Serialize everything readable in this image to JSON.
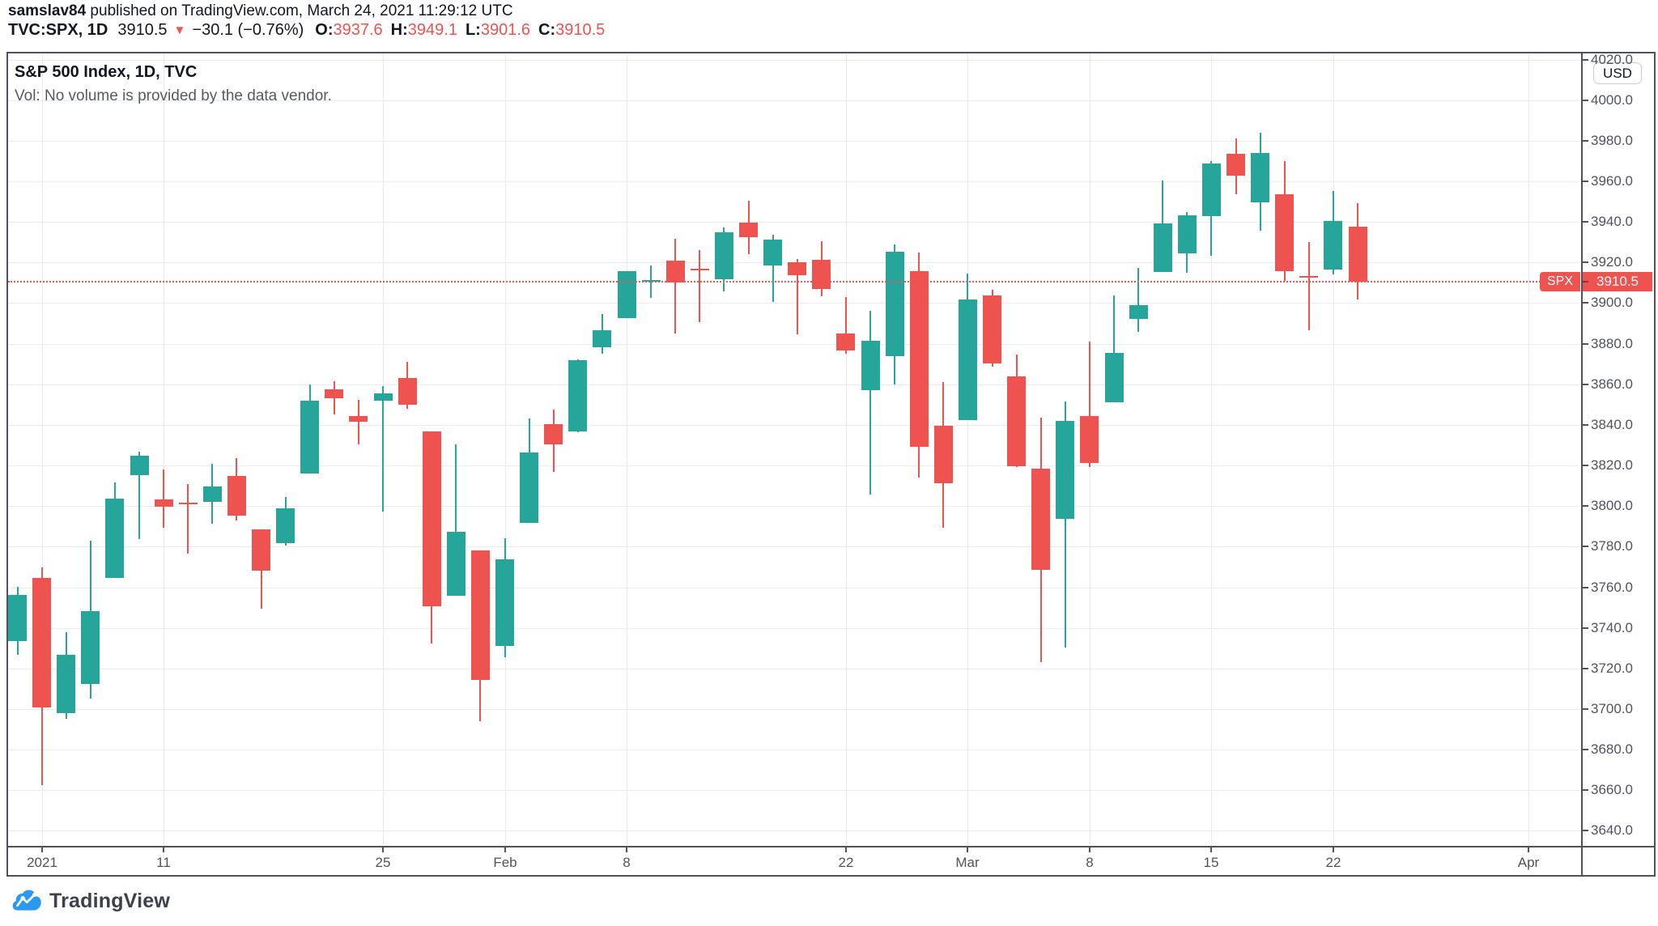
{
  "header": {
    "username": "samslav84",
    "published": " published on TradingView.com, March 24, 2021 11:29:12 UTC",
    "symbol": "TVC:SPX, 1D",
    "last_price": "3910.5",
    "direction_icon": "▼",
    "change": "−30.1 (−0.76%)",
    "ohlc": [
      {
        "k": "O:",
        "v": "3937.6"
      },
      {
        "k": "H:",
        "v": "3949.1"
      },
      {
        "k": "L:",
        "v": "3901.6"
      },
      {
        "k": "C:",
        "v": "3910.5"
      }
    ]
  },
  "legend": {
    "title": "S&P 500 Index, 1D, TVC",
    "volume_note": "Vol: No volume is provided by the data vendor."
  },
  "price_axis": {
    "currency": "USD",
    "label_badge": {
      "symbol": "SPX",
      "value": "3910.5"
    }
  },
  "watermark": "TradingView",
  "colors": {
    "up": "#26a69a",
    "down": "#ef5350",
    "accent_red": "#ef5350",
    "axis_text": "#50535e",
    "grid_h": "#e8edf3",
    "grid_v": "#e4ebf3",
    "frame": "#4f525c",
    "header_text": "#131722",
    "logo_blue": "#2b99f0"
  },
  "chart_data": {
    "type": "candlestick",
    "title": "S&P 500 Index, 1D, TVC",
    "symbol": "TVC:SPX",
    "timeframe": "1D",
    "currency": "USD",
    "price_line": 3910.5,
    "ylim": [
      3633,
      4023
    ],
    "y_ticks": [
      3640,
      3660,
      3680,
      3700,
      3720,
      3740,
      3760,
      3780,
      3800,
      3820,
      3840,
      3860,
      3880,
      3900,
      3920,
      3940,
      3960,
      3980,
      4000,
      4020
    ],
    "x_ticks": [
      {
        "label": "2021",
        "bar": 1
      },
      {
        "label": "11",
        "bar": 6
      },
      {
        "label": "25",
        "bar": 15
      },
      {
        "label": "Feb",
        "bar": 20
      },
      {
        "label": "8",
        "bar": 25
      },
      {
        "label": "22",
        "bar": 34
      },
      {
        "label": "Mar",
        "bar": 39
      },
      {
        "label": "8",
        "bar": 44
      },
      {
        "label": "15",
        "bar": 49
      },
      {
        "label": "22",
        "bar": 54
      },
      {
        "label": "Apr",
        "bar": 62
      }
    ],
    "bars": [
      {
        "date": "2020-12-31",
        "o": 3733.3,
        "h": 3760.2,
        "l": 3726.9,
        "c": 3756.1
      },
      {
        "date": "2021-01-04",
        "o": 3764.6,
        "h": 3769.9,
        "l": 3662.7,
        "c": 3700.6
      },
      {
        "date": "2021-01-05",
        "o": 3698.0,
        "h": 3737.8,
        "l": 3695.1,
        "c": 3726.9
      },
      {
        "date": "2021-01-06",
        "o": 3712.2,
        "h": 3783.0,
        "l": 3705.3,
        "c": 3748.1
      },
      {
        "date": "2021-01-07",
        "o": 3764.7,
        "h": 3811.6,
        "l": 3764.7,
        "c": 3803.8
      },
      {
        "date": "2021-01-08",
        "o": 3815.1,
        "h": 3826.7,
        "l": 3783.6,
        "c": 3824.7
      },
      {
        "date": "2021-01-11",
        "o": 3803.1,
        "h": 3817.9,
        "l": 3789.0,
        "c": 3799.6
      },
      {
        "date": "2021-01-12",
        "o": 3801.6,
        "h": 3810.8,
        "l": 3776.5,
        "c": 3801.2
      },
      {
        "date": "2021-01-13",
        "o": 3802.2,
        "h": 3820.9,
        "l": 3791.5,
        "c": 3809.8
      },
      {
        "date": "2021-01-14",
        "o": 3814.9,
        "h": 3823.6,
        "l": 3792.9,
        "c": 3795.5
      },
      {
        "date": "2021-01-15",
        "o": 3788.7,
        "h": 3788.7,
        "l": 3749.6,
        "c": 3768.3
      },
      {
        "date": "2021-01-19",
        "o": 3781.9,
        "h": 3804.5,
        "l": 3780.4,
        "c": 3798.9
      },
      {
        "date": "2021-01-20",
        "o": 3816.2,
        "h": 3859.8,
        "l": 3816.2,
        "c": 3851.9
      },
      {
        "date": "2021-01-21",
        "o": 3857.5,
        "h": 3861.5,
        "l": 3845.1,
        "c": 3853.1
      },
      {
        "date": "2021-01-22",
        "o": 3844.2,
        "h": 3852.3,
        "l": 3830.4,
        "c": 3841.5
      },
      {
        "date": "2021-01-25",
        "o": 3851.7,
        "h": 3859.2,
        "l": 3797.2,
        "c": 3855.4
      },
      {
        "date": "2021-01-26",
        "o": 3862.9,
        "h": 3870.9,
        "l": 3847.8,
        "c": 3849.6
      },
      {
        "date": "2021-01-27",
        "o": 3836.8,
        "h": 3836.8,
        "l": 3732.5,
        "c": 3750.8
      },
      {
        "date": "2021-01-28",
        "o": 3755.8,
        "h": 3830.5,
        "l": 3755.8,
        "c": 3787.4
      },
      {
        "date": "2021-01-29",
        "o": 3778.1,
        "h": 3778.1,
        "l": 3694.1,
        "c": 3714.2
      },
      {
        "date": "2021-02-01",
        "o": 3731.2,
        "h": 3784.3,
        "l": 3725.6,
        "c": 3773.9
      },
      {
        "date": "2021-02-02",
        "o": 3791.8,
        "h": 3843.2,
        "l": 3791.8,
        "c": 3826.3
      },
      {
        "date": "2021-02-03",
        "o": 3840.3,
        "h": 3847.5,
        "l": 3816.7,
        "c": 3830.2
      },
      {
        "date": "2021-02-04",
        "o": 3836.7,
        "h": 3872.4,
        "l": 3836.7,
        "c": 3871.7
      },
      {
        "date": "2021-02-05",
        "o": 3878.3,
        "h": 3894.6,
        "l": 3874.9,
        "c": 3886.8
      },
      {
        "date": "2021-02-08",
        "o": 3892.6,
        "h": 3915.8,
        "l": 3892.6,
        "c": 3915.6
      },
      {
        "date": "2021-02-09",
        "o": 3910.5,
        "h": 3918.4,
        "l": 3902.6,
        "c": 3911.2
      },
      {
        "date": "2021-02-10",
        "o": 3920.8,
        "h": 3931.5,
        "l": 3884.9,
        "c": 3909.9
      },
      {
        "date": "2021-02-11",
        "o": 3916.8,
        "h": 3926.0,
        "l": 3890.4,
        "c": 3916.4
      },
      {
        "date": "2021-02-12",
        "o": 3911.7,
        "h": 3937.2,
        "l": 3905.8,
        "c": 3934.8
      },
      {
        "date": "2021-02-16",
        "o": 3939.6,
        "h": 3950.4,
        "l": 3923.9,
        "c": 3932.6
      },
      {
        "date": "2021-02-17",
        "o": 3918.5,
        "h": 3933.6,
        "l": 3900.4,
        "c": 3931.3
      },
      {
        "date": "2021-02-18",
        "o": 3920.2,
        "h": 3921.9,
        "l": 3885.0,
        "c": 3914.0
      },
      {
        "date": "2021-02-19",
        "o": 3921.2,
        "h": 3930.4,
        "l": 3903.1,
        "c": 3906.7
      },
      {
        "date": "2021-02-22",
        "o": 3885.0,
        "h": 3902.9,
        "l": 3874.9,
        "c": 3876.5
      },
      {
        "date": "2021-02-23",
        "o": 3857.1,
        "h": 3896.0,
        "l": 3805.6,
        "c": 3881.4
      },
      {
        "date": "2021-02-24",
        "o": 3873.9,
        "h": 3928.7,
        "l": 3859.6,
        "c": 3925.4
      },
      {
        "date": "2021-02-25",
        "o": 3915.8,
        "h": 3925.0,
        "l": 3814.0,
        "c": 3829.3
      },
      {
        "date": "2021-02-26",
        "o": 3839.7,
        "h": 3861.1,
        "l": 3789.5,
        "c": 3811.2
      },
      {
        "date": "2021-03-01",
        "o": 3842.5,
        "h": 3914.5,
        "l": 3842.5,
        "c": 3901.8
      },
      {
        "date": "2021-03-02",
        "o": 3903.6,
        "h": 3906.4,
        "l": 3868.6,
        "c": 3870.3
      },
      {
        "date": "2021-03-03",
        "o": 3864.0,
        "h": 3874.5,
        "l": 3818.9,
        "c": 3819.7
      },
      {
        "date": "2021-03-04",
        "o": 3818.5,
        "h": 3843.7,
        "l": 3723.3,
        "c": 3768.5
      },
      {
        "date": "2021-03-05",
        "o": 3793.6,
        "h": 3851.7,
        "l": 3730.5,
        "c": 3841.9
      },
      {
        "date": "2021-03-08",
        "o": 3844.4,
        "h": 3881.1,
        "l": 3819.2,
        "c": 3821.4
      },
      {
        "date": "2021-03-09",
        "o": 3851.0,
        "h": 3903.8,
        "l": 3851.0,
        "c": 3875.4
      },
      {
        "date": "2021-03-10",
        "o": 3892.0,
        "h": 3917.4,
        "l": 3885.7,
        "c": 3898.8
      },
      {
        "date": "2021-03-11",
        "o": 3915.5,
        "h": 3960.3,
        "l": 3915.5,
        "c": 3939.3
      },
      {
        "date": "2021-03-12",
        "o": 3924.5,
        "h": 3945.0,
        "l": 3915.2,
        "c": 3943.3
      },
      {
        "date": "2021-03-15",
        "o": 3943.0,
        "h": 3970.1,
        "l": 3923.5,
        "c": 3968.9
      },
      {
        "date": "2021-03-16",
        "o": 3973.6,
        "h": 3981.0,
        "l": 3953.4,
        "c": 3962.7
      },
      {
        "date": "2021-03-17",
        "o": 3949.6,
        "h": 3983.9,
        "l": 3935.7,
        "c": 3974.1
      },
      {
        "date": "2021-03-18",
        "o": 3953.5,
        "h": 3969.8,
        "l": 3910.9,
        "c": 3915.5
      },
      {
        "date": "2021-03-19",
        "o": 3913.4,
        "h": 3930.0,
        "l": 3886.7,
        "c": 3913.1
      },
      {
        "date": "2021-03-22",
        "o": 3916.5,
        "h": 3955.4,
        "l": 3914.2,
        "c": 3940.6
      },
      {
        "date": "2021-03-23",
        "o": 3937.6,
        "h": 3949.1,
        "l": 3901.6,
        "c": 3910.5
      }
    ]
  }
}
